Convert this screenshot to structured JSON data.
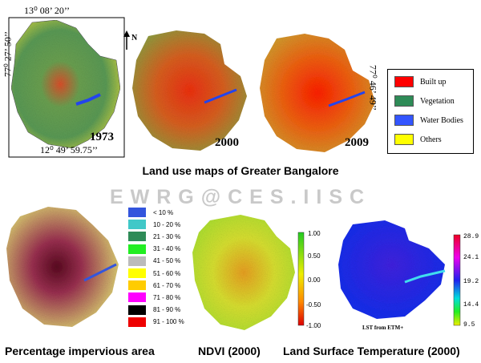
{
  "landuse": {
    "maps": [
      {
        "year": "1973"
      },
      {
        "year": "2000"
      },
      {
        "year": "2009"
      }
    ],
    "coords": {
      "top": "13⁰ 08’ 20’’",
      "left": "77⁰ 27’ 50’’",
      "right": "77⁰ 46’ 49’’",
      "bottom": "12⁰ 49’ 59.75’’"
    },
    "north_label": "N",
    "legend": [
      {
        "label": "Built up",
        "color": "#ff0000"
      },
      {
        "label": "Vegetation",
        "color": "#2e8b57"
      },
      {
        "label": "Water Bodies",
        "color": "#3355ff"
      },
      {
        "label": "Others",
        "color": "#ffff00"
      }
    ],
    "title": "Land use maps of Greater Bangalore"
  },
  "watermark": "EWRG@CES.IISC",
  "impervious": {
    "caption": "Percentage impervious area",
    "legend": [
      {
        "label": "< 10 %",
        "color": "#3355dd"
      },
      {
        "label": "10 - 20 %",
        "color": "#40c8c8"
      },
      {
        "label": "21 - 30 %",
        "color": "#2e8b57"
      },
      {
        "label": "31 - 40 %",
        "color": "#22ee22"
      },
      {
        "label": "41 - 50 %",
        "color": "#bbbbbb"
      },
      {
        "label": "51 - 60 %",
        "color": "#ffff00"
      },
      {
        "label": "61 - 70 %",
        "color": "#ffcc00"
      },
      {
        "label": "71 - 80 %",
        "color": "#ff00ff"
      },
      {
        "label": "81 - 90 %",
        "color": "#000000"
      },
      {
        "label": "91 - 100 %",
        "color": "#ee0000"
      }
    ]
  },
  "ndvi": {
    "caption": "NDVI (2000)",
    "scale": [
      "1.00",
      "0.50",
      "0.00",
      "-0.50",
      "-1.00"
    ]
  },
  "lst": {
    "caption": "Land Surface Temperature (2000)",
    "scale": [
      "28.9",
      "24.1",
      "19.2",
      "14.4",
      "9.5"
    ],
    "subtitle": "LST from ETM+"
  }
}
